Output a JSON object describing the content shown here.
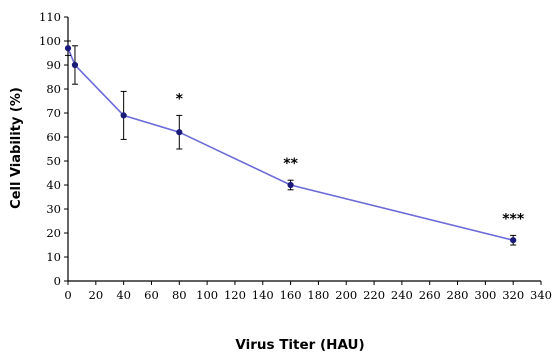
{
  "chart_data": {
    "type": "line",
    "title": "",
    "xlabel": "Virus Titer (HAU)",
    "ylabel": "Cell Viability (%)",
    "xlim": [
      0,
      340
    ],
    "ylim": [
      0,
      110
    ],
    "x_ticks": [
      0,
      20,
      40,
      60,
      80,
      100,
      120,
      140,
      160,
      180,
      200,
      220,
      240,
      260,
      280,
      300,
      320,
      340
    ],
    "y_ticks": [
      0,
      10,
      20,
      30,
      40,
      50,
      60,
      70,
      80,
      90,
      100,
      110
    ],
    "grid": false,
    "legend": "none",
    "line_color": "#6a6ad8",
    "marker_color": "#1a1a7a",
    "series": [
      {
        "x": [
          0,
          5,
          40,
          80,
          160,
          320
        ],
        "y": [
          97,
          90,
          69,
          62,
          40,
          17
        ],
        "error": [
          3,
          8,
          10,
          7,
          2,
          2
        ]
      }
    ],
    "annotations": [
      {
        "x": 80,
        "y": 74,
        "text": "*"
      },
      {
        "x": 160,
        "y": 47,
        "text": "**"
      },
      {
        "x": 320,
        "y": 24,
        "text": "***"
      }
    ]
  }
}
